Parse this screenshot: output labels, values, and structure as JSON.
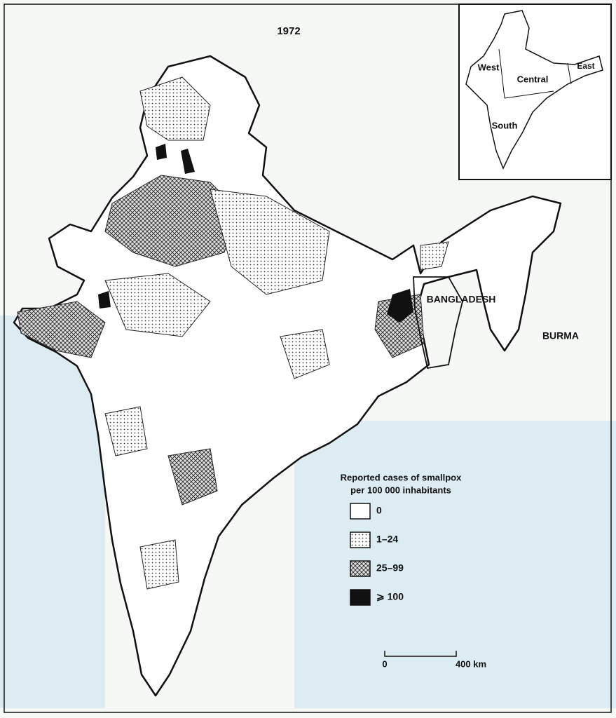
{
  "title": "1972",
  "inset": {
    "labels": [
      "West",
      "Central",
      "East",
      "South"
    ]
  },
  "labels": {
    "bangladesh": "BANGLADESH",
    "burma": "BURMA"
  },
  "legend": {
    "title": [
      "Reported cases of smallpox",
      "per 100 000 inhabitants"
    ],
    "items": [
      "0",
      "1–24",
      "25–99",
      "⩾ 100"
    ]
  },
  "scale": {
    "labels": [
      "0",
      "400 km"
    ]
  }
}
